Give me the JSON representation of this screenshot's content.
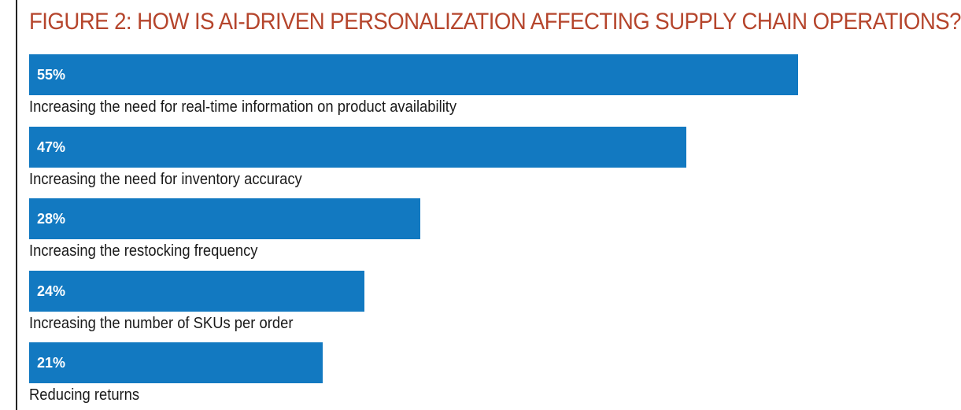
{
  "colors": {
    "title": "#b5452c",
    "bar": "#1279c1",
    "value_text": "#ffffff",
    "label_text": "#1a1a1a"
  },
  "chart_data": {
    "type": "bar",
    "orientation": "horizontal",
    "title": "FIGURE 2: HOW IS AI-DRIVEN PERSONALIZATION AFFECTING SUPPLY CHAIN OPERATIONS?",
    "categories": [
      "Increasing the need for real-time information on product availability",
      "Increasing the need for inventory accuracy",
      "Increasing the restocking frequency",
      "Increasing the number of SKUs per order",
      "Reducing returns"
    ],
    "values": [
      55,
      47,
      28,
      24,
      21
    ],
    "value_labels": [
      "55%",
      "47%",
      "28%",
      "24%",
      "21%"
    ],
    "unit": "%",
    "xlim": [
      0,
      55
    ],
    "grid": false,
    "legend": "none"
  }
}
